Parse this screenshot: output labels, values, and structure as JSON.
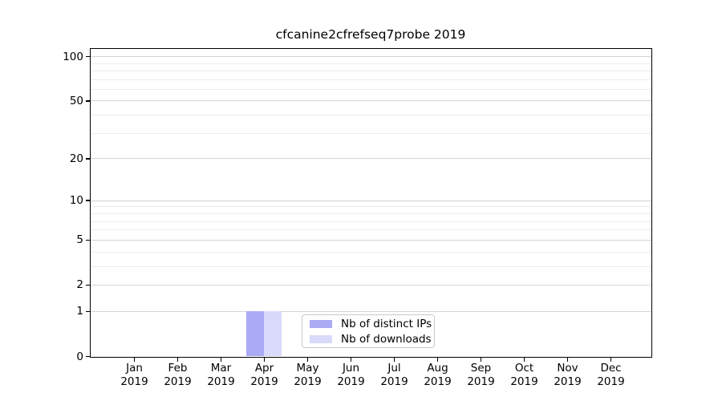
{
  "chart_data": {
    "type": "bar",
    "title": "cfcanine2cfrefseq7probe 2019",
    "categories": [
      {
        "month": "Jan",
        "year": "2019"
      },
      {
        "month": "Feb",
        "year": "2019"
      },
      {
        "month": "Mar",
        "year": "2019"
      },
      {
        "month": "Apr",
        "year": "2019"
      },
      {
        "month": "May",
        "year": "2019"
      },
      {
        "month": "Jun",
        "year": "2019"
      },
      {
        "month": "Jul",
        "year": "2019"
      },
      {
        "month": "Aug",
        "year": "2019"
      },
      {
        "month": "Sep",
        "year": "2019"
      },
      {
        "month": "Oct",
        "year": "2019"
      },
      {
        "month": "Nov",
        "year": "2019"
      },
      {
        "month": "Dec",
        "year": "2019"
      }
    ],
    "series": [
      {
        "name": "Nb of distinct IPs",
        "color": "#aaaaf5",
        "values": [
          0,
          0,
          0,
          1,
          0,
          0,
          0,
          0,
          0,
          0,
          0,
          0
        ]
      },
      {
        "name": "Nb of downloads",
        "color": "#d9d9fa",
        "values": [
          0,
          0,
          0,
          1,
          0,
          0,
          0,
          0,
          0,
          0,
          0,
          0
        ]
      }
    ],
    "y_axis": {
      "scale": "log1p",
      "ylim": [
        0,
        112
      ],
      "major_ticks": [
        0,
        1,
        2,
        5,
        10,
        20,
        50,
        100
      ],
      "tick_labels": [
        "0",
        "1",
        "2",
        "5",
        "10",
        "20",
        "50",
        "100"
      ],
      "minor_gridlines": [
        3,
        4,
        6,
        7,
        8,
        9,
        30,
        40,
        60,
        70,
        80,
        90
      ]
    },
    "x_axis": {
      "label_lines": 2
    },
    "legend": {
      "entries": [
        "Nb of distinct IPs",
        "Nb of downloads"
      ],
      "position": "lower center"
    },
    "grid": true,
    "colors": {
      "spine": "#000000",
      "major_grid": "#d4d4d4",
      "minor_grid": "#ececec",
      "background": "#ffffff"
    }
  }
}
